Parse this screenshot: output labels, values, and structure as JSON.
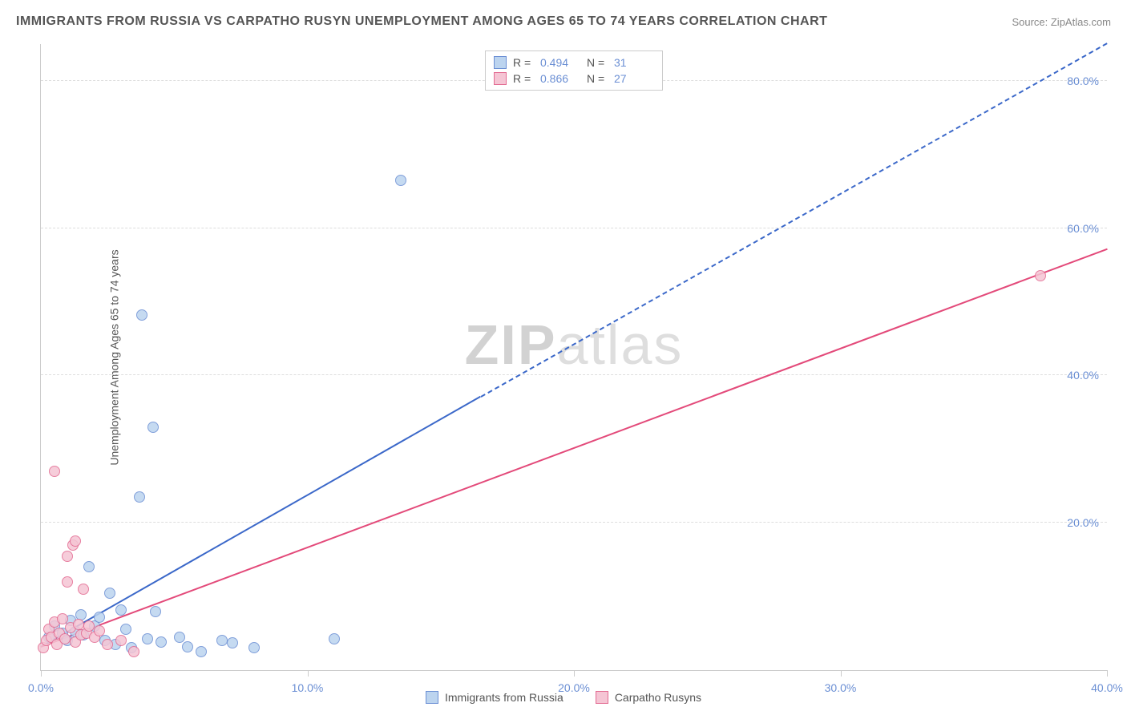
{
  "title": "IMMIGRANTS FROM RUSSIA VS CARPATHO RUSYN UNEMPLOYMENT AMONG AGES 65 TO 74 YEARS CORRELATION CHART",
  "source": "Source: ZipAtlas.com",
  "y_axis_label": "Unemployment Among Ages 65 to 74 years",
  "watermark": {
    "strong": "ZIP",
    "light": "atlas"
  },
  "chart": {
    "type": "scatter",
    "background_color": "#ffffff",
    "grid_color": "#dddddd",
    "axis_color": "#cccccc",
    "tick_label_color": "#6b8fd4",
    "text_color": "#555555",
    "xlim": [
      0,
      40
    ],
    "ylim": [
      0,
      85
    ],
    "x_ticks": [
      0,
      10,
      20,
      30,
      40
    ],
    "x_tick_labels": [
      "0.0%",
      "10.0%",
      "20.0%",
      "30.0%",
      "40.0%"
    ],
    "y_ticks": [
      20,
      40,
      60,
      80
    ],
    "y_tick_labels": [
      "20.0%",
      "40.0%",
      "60.0%",
      "80.0%"
    ],
    "marker_radius": 7,
    "marker_stroke_width": 1,
    "series": [
      {
        "name": "Immigrants from Russia",
        "fill": "#bcd4ef",
        "stroke": "#6b8fd4",
        "points": [
          [
            0.3,
            4.5
          ],
          [
            0.5,
            6.0
          ],
          [
            0.8,
            5.0
          ],
          [
            1.0,
            4.0
          ],
          [
            1.1,
            6.8
          ],
          [
            1.3,
            5.2
          ],
          [
            1.5,
            7.5
          ],
          [
            1.6,
            4.8
          ],
          [
            1.8,
            14.0
          ],
          [
            2.0,
            6.0
          ],
          [
            2.2,
            7.2
          ],
          [
            2.4,
            4.0
          ],
          [
            2.6,
            10.5
          ],
          [
            2.8,
            3.5
          ],
          [
            3.0,
            8.2
          ],
          [
            3.2,
            5.5
          ],
          [
            3.4,
            3.0
          ],
          [
            3.7,
            23.5
          ],
          [
            3.8,
            48.2
          ],
          [
            4.0,
            4.2
          ],
          [
            4.2,
            33.0
          ],
          [
            4.3,
            8.0
          ],
          [
            4.5,
            3.8
          ],
          [
            5.2,
            4.5
          ],
          [
            5.5,
            3.2
          ],
          [
            6.0,
            2.5
          ],
          [
            6.8,
            4.0
          ],
          [
            7.2,
            3.7
          ],
          [
            8.0,
            3.0
          ],
          [
            11.0,
            4.2
          ],
          [
            13.5,
            66.5
          ]
        ],
        "trend": {
          "color": "#3b68c9",
          "width": 2,
          "solid_from": [
            0,
            3
          ],
          "solid_to": [
            16.5,
            37
          ],
          "dash_to": [
            40,
            85
          ]
        }
      },
      {
        "name": "Carpatho Rusyns",
        "fill": "#f5c5d4",
        "stroke": "#e36a91",
        "points": [
          [
            0.1,
            3.0
          ],
          [
            0.2,
            4.0
          ],
          [
            0.3,
            5.5
          ],
          [
            0.4,
            4.5
          ],
          [
            0.5,
            6.5
          ],
          [
            0.5,
            27.0
          ],
          [
            0.6,
            3.5
          ],
          [
            0.7,
            5.0
          ],
          [
            0.8,
            7.0
          ],
          [
            0.9,
            4.2
          ],
          [
            1.0,
            12.0
          ],
          [
            1.0,
            15.5
          ],
          [
            1.1,
            5.8
          ],
          [
            1.2,
            17.0
          ],
          [
            1.3,
            3.8
          ],
          [
            1.3,
            17.5
          ],
          [
            1.4,
            6.2
          ],
          [
            1.5,
            4.8
          ],
          [
            1.6,
            11.0
          ],
          [
            1.7,
            5.0
          ],
          [
            1.8,
            6.0
          ],
          [
            2.0,
            4.5
          ],
          [
            2.2,
            5.3
          ],
          [
            2.5,
            3.5
          ],
          [
            3.0,
            4.0
          ],
          [
            3.5,
            2.5
          ],
          [
            37.5,
            53.5
          ]
        ],
        "trend": {
          "color": "#e34a7a",
          "width": 2,
          "solid_from": [
            0,
            3
          ],
          "solid_to": [
            40,
            57
          ],
          "dash_to": null
        }
      }
    ]
  },
  "legend_top": {
    "rows": [
      {
        "swatch_fill": "#bcd4ef",
        "swatch_stroke": "#6b8fd4",
        "r_label": "R =",
        "r_value": "0.494",
        "n_label": "N =",
        "n_value": "31"
      },
      {
        "swatch_fill": "#f5c5d4",
        "swatch_stroke": "#e36a91",
        "r_label": "R =",
        "r_value": "0.866",
        "n_label": "N =",
        "n_value": "27"
      }
    ]
  },
  "legend_bottom": {
    "items": [
      {
        "swatch_fill": "#bcd4ef",
        "swatch_stroke": "#6b8fd4",
        "label": "Immigrants from Russia"
      },
      {
        "swatch_fill": "#f5c5d4",
        "swatch_stroke": "#e36a91",
        "label": "Carpatho Rusyns"
      }
    ]
  }
}
